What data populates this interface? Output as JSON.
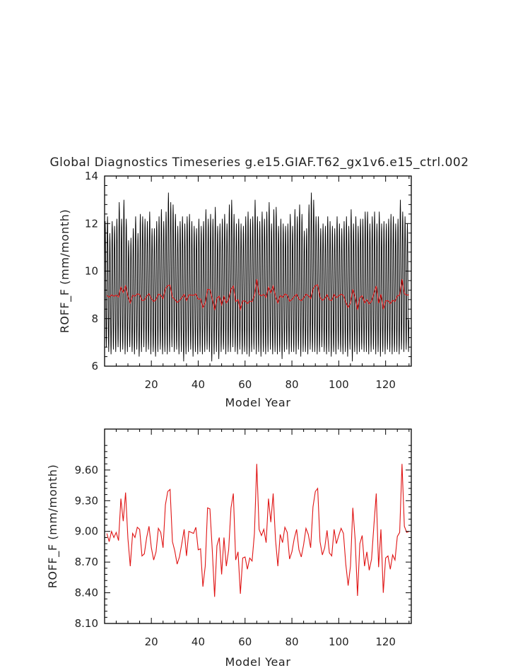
{
  "chart_data": [
    {
      "type": "line",
      "title": "Global Diagnostics Timeseries g.e15.GIAF.T62_gx1v6.e15_ctrl.002",
      "xlabel": "Model Year",
      "ylabel": "ROFF_F (mm/month)",
      "xlim": [
        0.04,
        130.96
      ],
      "ylim": [
        6,
        14
      ],
      "x_ticks": [
        20,
        40,
        60,
        80,
        100,
        120
      ],
      "y_ticks": [
        6,
        8,
        10,
        12,
        14
      ],
      "grid": false,
      "series": [
        {
          "color": "#000000",
          "resolution": "monthly",
          "seasonal_cycle": {
            "min": 6.6,
            "max": 12.0
          },
          "annual_max": [
            12.1,
            12.3,
            11.6,
            12.1,
            11.9,
            12.2,
            12.9,
            12.2,
            13.0,
            12.2,
            11.3,
            11.4,
            11.8,
            12.3,
            11.6,
            12.4,
            12.3,
            12.2,
            12.1,
            12.5,
            11.8,
            11.8,
            12.1,
            12.3,
            12.6,
            12.1,
            12.5,
            13.3,
            12.9,
            12.8,
            12.4,
            11.9,
            12.1,
            12.3,
            12.0,
            12.3,
            12.4,
            12.1,
            11.9,
            11.8,
            12.2,
            11.9,
            12.1,
            12.6,
            12.2,
            12.4,
            12.2,
            12.7,
            11.9,
            12.0,
            12.2,
            12.4,
            12.0,
            12.8,
            13.0,
            12.4,
            12.0,
            12.2,
            12.0,
            11.9,
            12.3,
            12.5,
            12.2,
            12.3,
            13.0,
            12.3,
            12.1,
            12.5,
            12.2,
            12.5,
            12.9,
            12.0,
            12.6,
            12.7,
            11.9,
            12.2,
            12.0,
            11.9,
            12.0,
            12.4,
            11.9,
            12.6,
            12.3,
            12.8,
            12.4,
            11.7,
            11.8,
            12.8,
            13.3,
            13.0,
            12.3,
            12.3,
            11.8,
            12.0,
            11.9,
            12.3,
            12.1,
            11.9,
            11.8,
            12.3,
            12.0,
            11.8,
            12.1,
            12.3,
            11.9,
            12.6,
            12.0,
            12.3,
            11.9,
            12.2,
            12.2,
            12.5,
            12.5,
            12.0,
            12.3,
            12.5,
            12.0,
            12.5,
            12.0,
            12.1,
            12.0,
            12.2,
            12.4,
            12.3,
            12.0,
            12.2,
            13.0,
            12.5,
            12.3,
            12.0
          ],
          "annual_min": [
            6.8,
            6.6,
            6.5,
            6.7,
            6.6,
            6.8,
            6.6,
            6.7,
            6.5,
            6.6,
            6.8,
            6.6,
            6.5,
            6.7,
            6.4,
            6.6,
            6.8,
            6.6,
            6.7,
            6.5,
            6.6,
            6.4,
            6.6,
            6.7,
            6.5,
            6.6,
            6.5,
            6.6,
            6.8,
            6.6,
            6.7,
            6.5,
            6.6,
            6.2,
            6.5,
            6.6,
            6.7,
            6.4,
            6.6,
            6.5,
            6.6,
            6.5,
            6.6,
            6.7,
            6.6,
            6.2,
            6.5,
            6.6,
            6.3,
            6.6,
            6.7,
            6.5,
            6.6,
            6.6,
            6.8,
            6.6,
            6.5,
            6.7,
            6.5,
            6.6,
            6.5,
            6.4,
            6.6,
            6.7,
            6.5,
            6.6,
            6.4,
            6.6,
            6.5,
            6.6,
            6.7,
            6.5,
            6.6,
            6.5,
            6.6,
            6.3,
            6.6,
            6.7,
            6.5,
            6.6,
            6.6,
            6.5,
            6.7,
            6.4,
            6.6,
            6.6,
            6.5,
            6.7,
            6.6,
            6.6,
            6.5,
            6.6,
            6.8,
            6.6,
            6.5,
            6.6,
            6.4,
            6.6,
            6.5,
            6.7,
            6.6,
            6.5,
            6.6,
            6.4,
            6.7,
            6.2,
            6.6,
            6.5,
            6.6,
            6.7,
            6.6,
            6.6,
            6.5,
            6.6,
            6.7,
            6.5,
            6.6,
            6.4,
            6.6,
            6.5,
            6.7,
            6.6,
            6.5,
            6.6,
            6.6,
            6.5,
            6.7,
            6.6,
            6.7,
            6.6
          ]
        },
        {
          "color": "#e01414",
          "resolution": "annual",
          "values": "annual_mean"
        }
      ]
    },
    {
      "type": "line",
      "title": "",
      "xlabel": "Model Year",
      "ylabel": "ROFF_F (mm/month)",
      "xlim": [
        0.04,
        130.96
      ],
      "ylim": [
        8.1,
        10.0
      ],
      "x_ticks": [
        20,
        40,
        60,
        80,
        100,
        120
      ],
      "y_ticks": [
        8.1,
        8.4,
        8.7,
        9.0,
        9.3,
        9.6
      ],
      "y_tick_labels": [
        "8.10",
        "8.40",
        "8.70",
        "9.00",
        "9.30",
        "9.60"
      ],
      "grid": false,
      "x": "years 1-130",
      "series": [
        {
          "color": "#e01414",
          "values": [
            8.98,
            8.9,
            9.0,
            8.94,
            8.99,
            8.91,
            9.32,
            9.1,
            9.38,
            8.93,
            8.66,
            8.98,
            8.94,
            9.04,
            9.02,
            8.76,
            8.78,
            8.94,
            9.05,
            8.84,
            8.72,
            8.8,
            9.03,
            8.99,
            8.84,
            9.26,
            9.39,
            9.41,
            8.9,
            8.81,
            8.68,
            8.75,
            8.88,
            9.02,
            8.76,
            9.0,
            8.99,
            8.98,
            9.04,
            8.82,
            8.83,
            8.46,
            8.66,
            9.23,
            9.22,
            8.82,
            8.36,
            8.86,
            8.94,
            8.58,
            8.94,
            8.66,
            8.82,
            9.23,
            9.37,
            8.72,
            8.8,
            8.39,
            8.74,
            8.75,
            8.63,
            8.74,
            8.71,
            8.98,
            9.66,
            9.02,
            8.96,
            9.02,
            8.89,
            9.32,
            9.09,
            9.37,
            8.92,
            8.66,
            8.97,
            8.89,
            9.04,
            8.99,
            8.73,
            8.8,
            8.93,
            9.02,
            8.82,
            8.75,
            8.87,
            9.03,
            8.97,
            8.84,
            9.24,
            9.39,
            9.42,
            8.9,
            8.77,
            8.84,
            9.01,
            8.79,
            8.76,
            9.02,
            8.88,
            8.96,
            9.03,
            8.98,
            8.68,
            8.47,
            8.66,
            9.23,
            8.92,
            8.37,
            8.88,
            8.96,
            8.66,
            8.8,
            8.62,
            8.73,
            9.06,
            9.37,
            8.65,
            9.02,
            8.4,
            8.74,
            8.76,
            8.63,
            8.77,
            8.72,
            8.95,
            8.99,
            9.66,
            9.05,
            8.99,
            9.0
          ]
        }
      ]
    }
  ]
}
